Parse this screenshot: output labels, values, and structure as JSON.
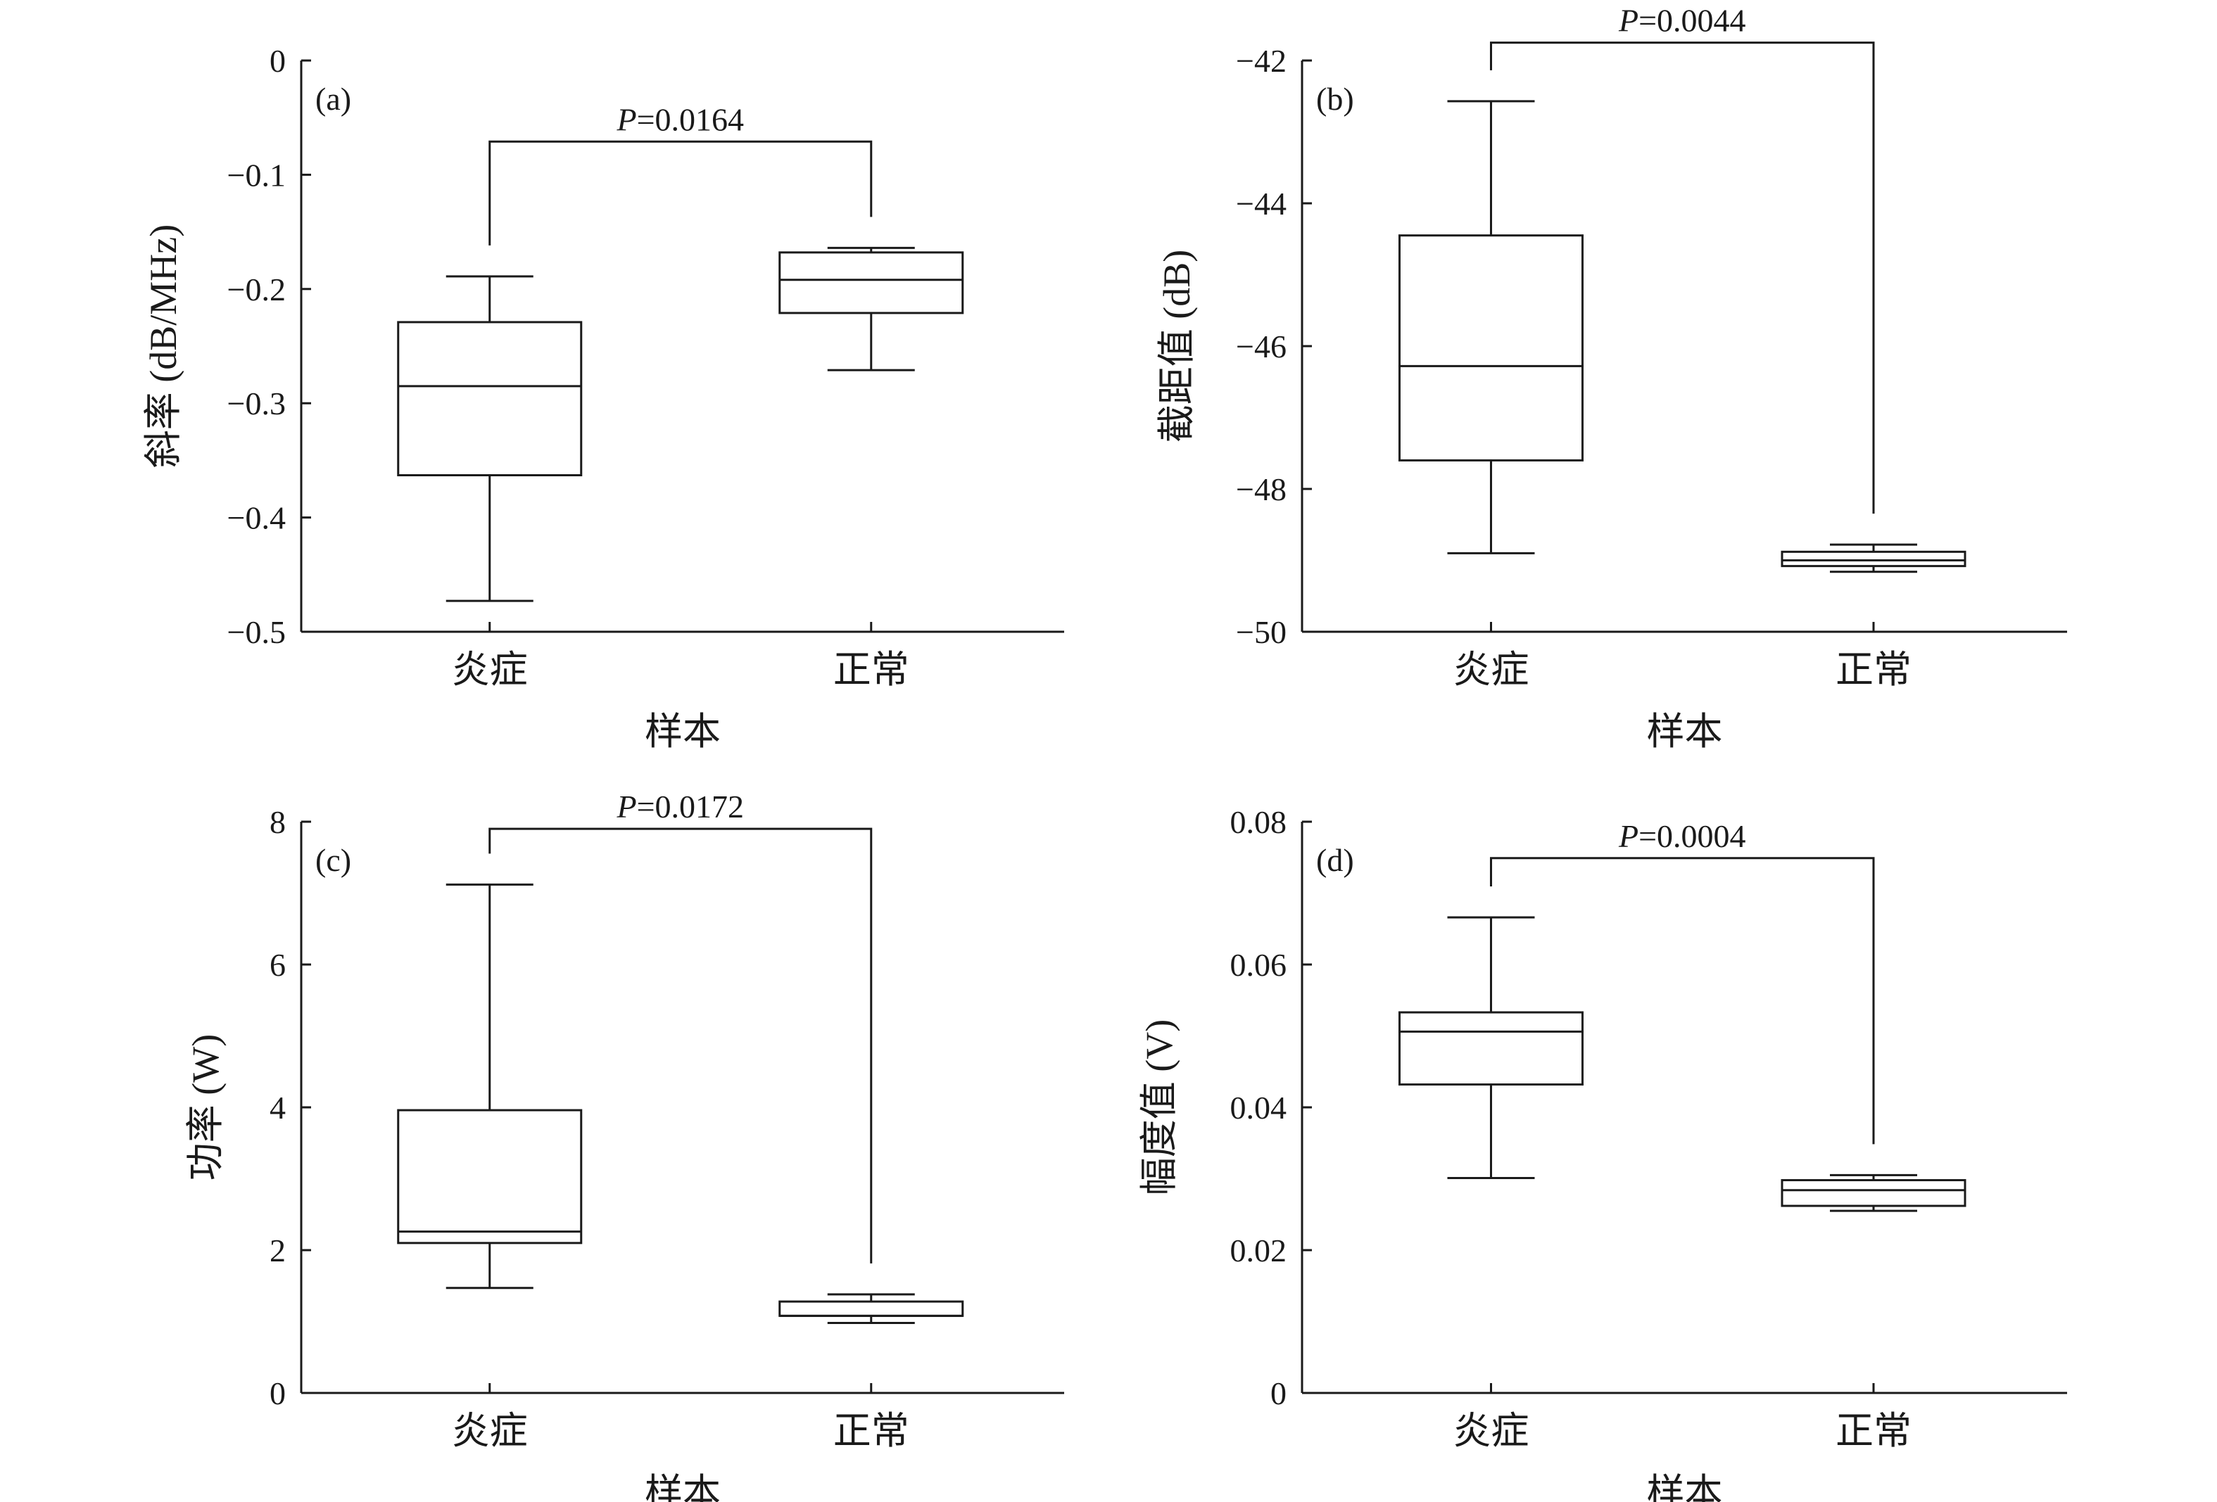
{
  "chart_data": [
    {
      "type": "box",
      "panel_label": "(a)",
      "categories": [
        "炎症",
        "正常"
      ],
      "xlabel": "样本",
      "ylabel": "斜率 (dB/MHz)",
      "ylim": [
        -0.5,
        0
      ],
      "yticks": [
        0,
        -0.1,
        -0.2,
        -0.3,
        -0.4,
        -0.5
      ],
      "ytick_labels": [
        "0",
        "−0.1",
        "−0.2",
        "−0.3",
        "−0.4",
        "−0.5"
      ],
      "boxes": [
        {
          "category": "炎症",
          "whisker_low": -0.473,
          "q1": -0.363,
          "median": -0.285,
          "q3": -0.229,
          "whisker_high": -0.189
        },
        {
          "category": "正常",
          "whisker_low": -0.271,
          "q1": -0.221,
          "median": -0.192,
          "q3": -0.168,
          "whisker_high": -0.164
        }
      ],
      "significance": {
        "p_symbol": "P",
        "p_value": "=0.0164",
        "bracket_y": -0.071
      }
    },
    {
      "type": "box",
      "panel_label": "(b)",
      "categories": [
        "炎症",
        "正常"
      ],
      "xlabel": "样本",
      "ylabel": "截距值 (dB)",
      "ylim": [
        -50,
        -42
      ],
      "yticks": [
        -42,
        -44,
        -46,
        -48,
        -50
      ],
      "ytick_labels": [
        "−42",
        "−44",
        "−46",
        "−48",
        "−50"
      ],
      "boxes": [
        {
          "category": "炎症",
          "whisker_low": -48.9,
          "q1": -47.6,
          "median": -46.28,
          "q3": -44.45,
          "whisker_high": -42.57
        },
        {
          "category": "正常",
          "whisker_low": -49.16,
          "q1": -49.08,
          "median": -49.0,
          "q3": -48.88,
          "whisker_high": -48.78
        }
      ],
      "significance": {
        "p_symbol": "P",
        "p_value": "=0.0044",
        "bracket_y": -41.75
      }
    },
    {
      "type": "box",
      "panel_label": "(c)",
      "categories": [
        "炎症",
        "正常"
      ],
      "xlabel": "样本",
      "ylabel": "功率 (W)",
      "ylim": [
        0,
        8
      ],
      "yticks": [
        0,
        2,
        4,
        6,
        8
      ],
      "ytick_labels": [
        "0",
        "2",
        "4",
        "6",
        "8"
      ],
      "boxes": [
        {
          "category": "炎症",
          "whisker_low": 1.47,
          "q1": 2.1,
          "median": 2.26,
          "q3": 3.96,
          "whisker_high": 7.12
        },
        {
          "category": "正常",
          "whisker_low": 0.98,
          "q1": 1.08,
          "median": 1.08,
          "q3": 1.28,
          "whisker_high": 1.38
        }
      ],
      "significance": {
        "p_symbol": "P",
        "p_value": "=0.0172",
        "bracket_y": 7.9
      }
    },
    {
      "type": "box",
      "panel_label": "(d)",
      "categories": [
        "炎症",
        "正常"
      ],
      "xlabel": "样本",
      "ylabel": "幅度值 (V)",
      "ylim": [
        0,
        0.08
      ],
      "yticks": [
        0,
        0.02,
        0.04,
        0.06,
        0.08
      ],
      "ytick_labels": [
        "0",
        "0.02",
        "0.04",
        "0.06",
        "0.08"
      ],
      "boxes": [
        {
          "category": "炎症",
          "whisker_low": 0.0301,
          "q1": 0.0432,
          "median": 0.0506,
          "q3": 0.0533,
          "whisker_high": 0.0666
        },
        {
          "category": "正常",
          "whisker_low": 0.0255,
          "q1": 0.0262,
          "median": 0.0284,
          "q3": 0.0298,
          "whisker_high": 0.0305
        }
      ],
      "significance": {
        "p_symbol": "P",
        "p_value": "=0.0004",
        "bracket_y": 0.0749
      }
    }
  ]
}
